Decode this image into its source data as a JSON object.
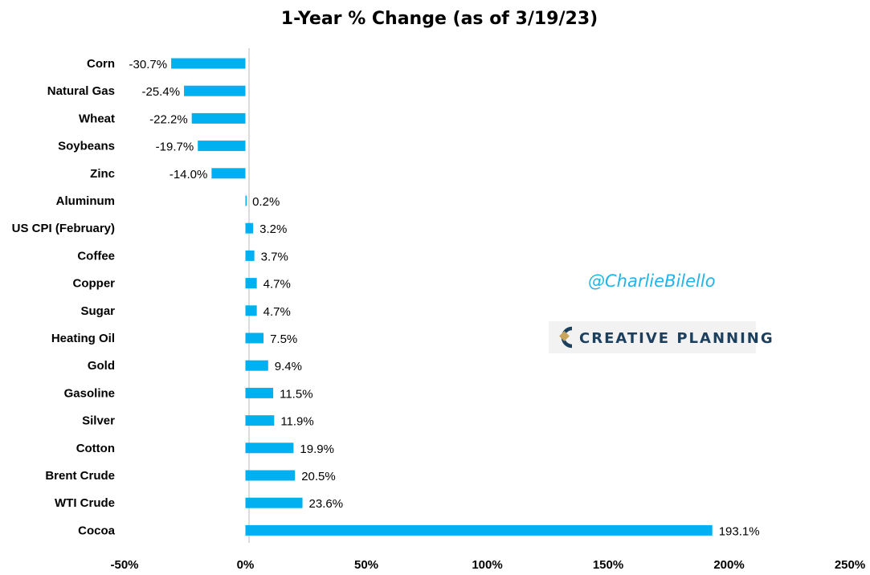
{
  "chart_data": {
    "type": "bar",
    "orientation": "horizontal",
    "title": "1-Year % Change (as of 3/19/23)",
    "xlabel": "",
    "ylabel": "",
    "xlim": [
      -50,
      250
    ],
    "x_ticks": [
      -50,
      0,
      50,
      100,
      150,
      200,
      250
    ],
    "tick_suffix": "%",
    "grid": false,
    "bar_color": "#00b0f0",
    "categories": [
      "Corn",
      "Natural Gas",
      "Wheat",
      "Soybeans",
      "Zinc",
      "Aluminum",
      "US CPI (February)",
      "Coffee",
      "Copper",
      "Sugar",
      "Heating Oil",
      "Gold",
      "Gasoline",
      "Silver",
      "Cotton",
      "Brent Crude",
      "WTI Crude",
      "Cocoa"
    ],
    "values": [
      -30.7,
      -25.4,
      -22.2,
      -19.7,
      -14.0,
      0.2,
      3.2,
      3.7,
      4.7,
      4.7,
      7.5,
      9.4,
      11.5,
      11.9,
      19.9,
      20.5,
      23.6,
      193.1
    ],
    "value_labels": [
      "-30.7%",
      "-25.4%",
      "-22.2%",
      "-19.7%",
      "-14.0%",
      "0.2%",
      "3.2%",
      "3.7%",
      "4.7%",
      "4.7%",
      "7.5%",
      "9.4%",
      "11.5%",
      "11.9%",
      "19.9%",
      "20.5%",
      "23.6%",
      "193.1%"
    ]
  },
  "watermark": {
    "handle": "@CharlieBilello",
    "handle_color": "#1fb5e8",
    "brand": "CREATIVE PLANNING",
    "brand_color": "#1c3f5e",
    "logo_accent_color": "#c9a45c"
  }
}
